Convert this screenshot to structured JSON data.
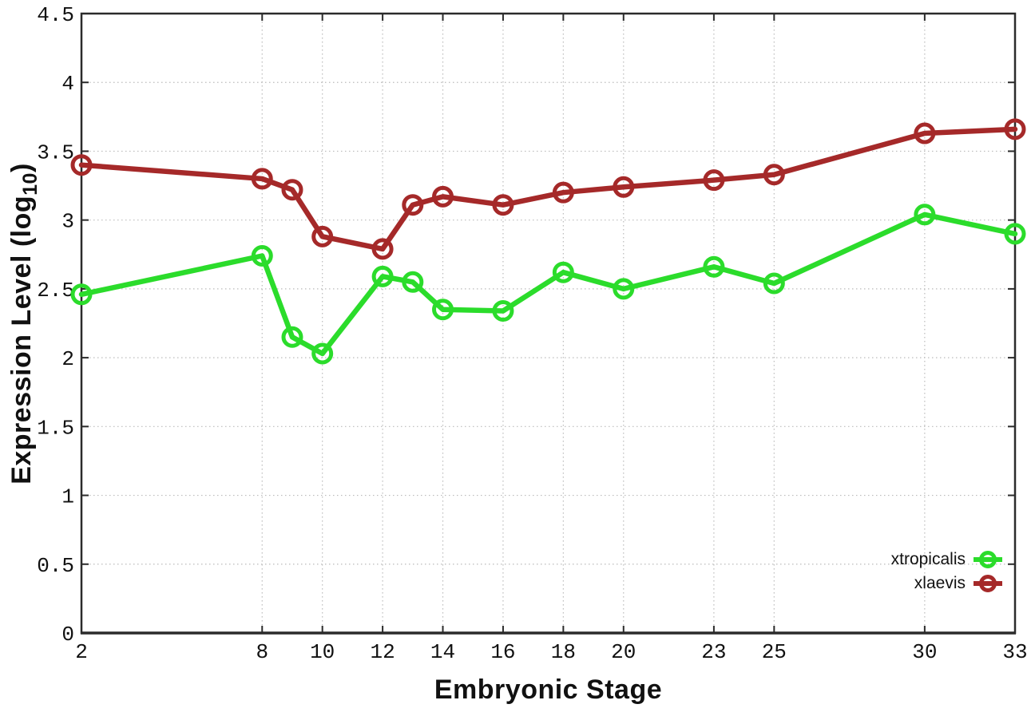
{
  "chart_data": {
    "type": "line",
    "title": "",
    "xlabel": "Embryonic Stage",
    "ylabel": {
      "prefix": "Expression Level (log",
      "subscript": "10",
      "suffix": ")"
    },
    "xlim": [
      2,
      33
    ],
    "ylim": [
      0,
      4.5
    ],
    "x_ticks": [
      2,
      8,
      10,
      12,
      14,
      16,
      18,
      20,
      23,
      25,
      30,
      33
    ],
    "y_ticks": [
      0,
      0.5,
      1,
      1.5,
      2,
      2.5,
      3,
      3.5,
      4,
      4.5
    ],
    "grid": "dotted",
    "legend_position": "inside bottom-right",
    "x": [
      2,
      8,
      9,
      10,
      12,
      13,
      14,
      16,
      18,
      20,
      23,
      25,
      30,
      33
    ],
    "series": [
      {
        "name": "xtropicalis",
        "color": "#2BDC2B",
        "values": [
          2.46,
          2.74,
          2.15,
          2.03,
          2.59,
          2.55,
          2.35,
          2.34,
          2.62,
          2.5,
          2.66,
          2.54,
          3.04,
          2.9
        ]
      },
      {
        "name": "xlaevis",
        "color": "#A52929",
        "values": [
          3.4,
          3.3,
          3.22,
          2.88,
          2.79,
          3.11,
          3.17,
          3.11,
          3.2,
          3.24,
          3.29,
          3.33,
          3.63,
          3.66
        ]
      }
    ],
    "colors": {
      "grid": "#bbbbbb",
      "axis": "#2b2b2b",
      "text": "#111111"
    }
  }
}
